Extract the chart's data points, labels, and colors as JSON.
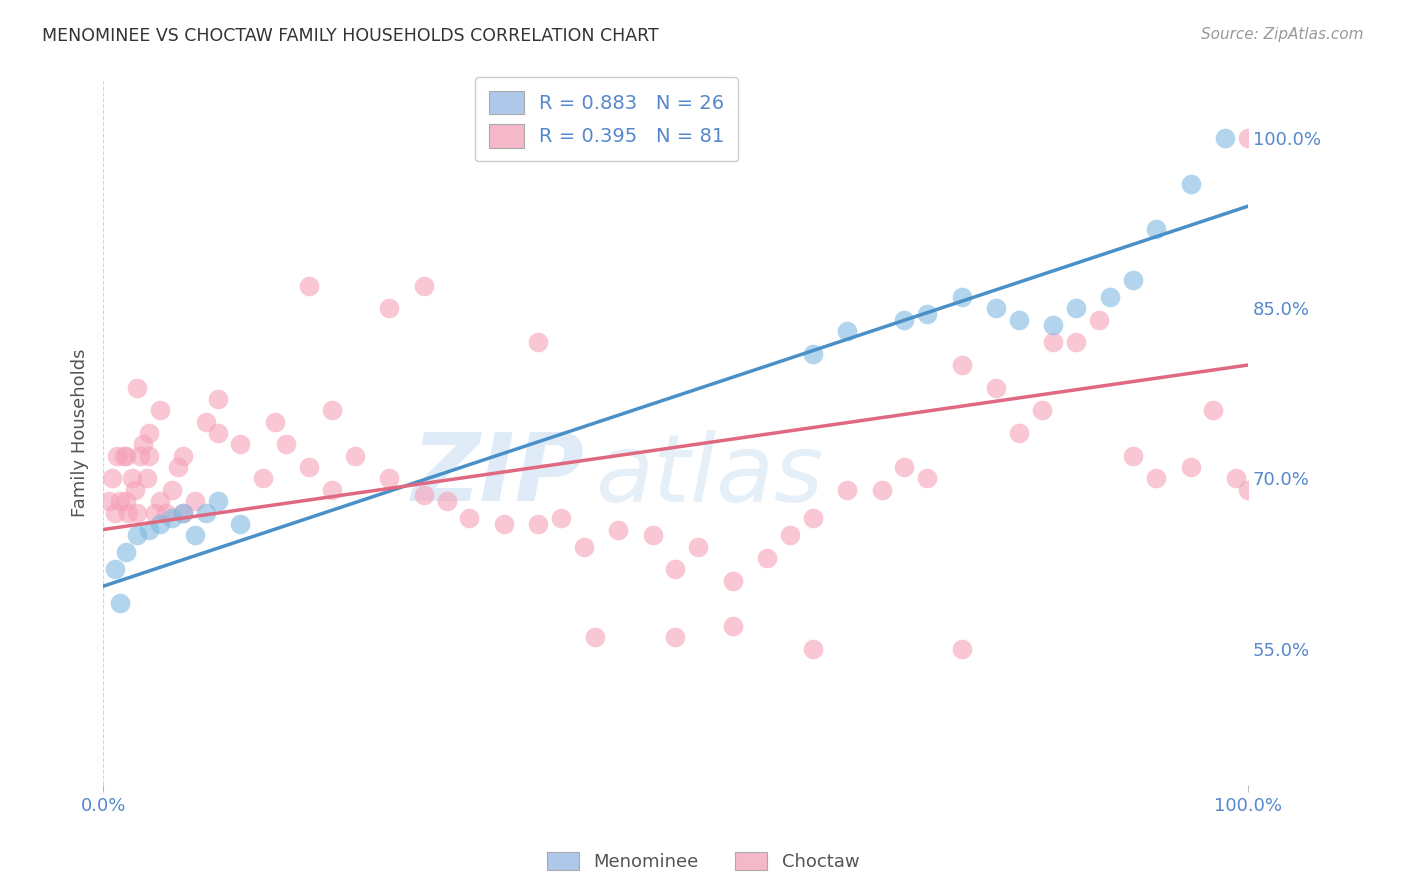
{
  "title": "MENOMINEE VS CHOCTAW FAMILY HOUSEHOLDS CORRELATION CHART",
  "source": "Source: ZipAtlas.com",
  "ylabel": "Family Households",
  "watermark_line1": "ZIP",
  "watermark_line2": "atlas",
  "legend_entries": [
    {
      "label": "R = 0.883   N = 26",
      "color": "#adc8e8"
    },
    {
      "label": "R = 0.395   N = 81",
      "color": "#f5b8c8"
    }
  ],
  "legend_labels": [
    "Menominee",
    "Choctaw"
  ],
  "menominee_color": "#7fb8e0",
  "choctaw_color": "#f5a0b8",
  "menominee_line_color": "#4a90c8",
  "choctaw_line_color": "#e06880",
  "background_color": "#ffffff",
  "grid_color": "#c8c8c8",
  "axis_label_color": "#5588cc",
  "xlim": [
    0,
    100
  ],
  "ylim_min": 43,
  "ylim_max": 105,
  "ytick_vals": [
    55.0,
    70.0,
    85.0,
    100.0
  ],
  "menominee_x": [
    1.0,
    1.5,
    2.0,
    3.0,
    4.0,
    5.0,
    6.0,
    7.0,
    8.0,
    9.0,
    10.0,
    12.0,
    62.0,
    65.0,
    70.0,
    72.0,
    75.0,
    78.0,
    80.0,
    83.0,
    85.0,
    88.0,
    90.0,
    92.0,
    95.0,
    98.0
  ],
  "menominee_y": [
    62.0,
    59.0,
    63.5,
    65.0,
    65.5,
    66.0,
    66.5,
    67.0,
    65.0,
    67.0,
    68.0,
    66.0,
    81.0,
    83.0,
    84.0,
    84.5,
    86.0,
    85.0,
    84.0,
    83.5,
    85.0,
    86.0,
    87.5,
    92.0,
    96.0,
    100.0
  ],
  "choctaw_x": [
    0.5,
    0.8,
    1.0,
    1.2,
    1.5,
    1.8,
    2.0,
    2.2,
    2.5,
    2.8,
    3.0,
    3.2,
    3.5,
    3.8,
    4.0,
    4.5,
    5.0,
    5.5,
    6.0,
    6.5,
    7.0,
    8.0,
    9.0,
    10.0,
    12.0,
    14.0,
    16.0,
    18.0,
    20.0,
    22.0,
    25.0,
    28.0,
    30.0,
    32.0,
    35.0,
    38.0,
    40.0,
    42.0,
    45.0,
    48.0,
    50.0,
    52.0,
    55.0,
    58.0,
    60.0,
    62.0,
    65.0,
    68.0,
    70.0,
    72.0,
    75.0,
    78.0,
    80.0,
    82.0,
    83.0,
    85.0,
    87.0,
    90.0,
    92.0,
    95.0,
    97.0,
    99.0,
    100.0,
    2.0,
    3.0,
    4.0,
    5.0,
    7.0,
    10.0,
    15.0,
    20.0,
    38.0,
    43.0,
    28.0,
    25.0,
    18.0,
    50.0,
    55.0,
    62.0,
    75.0,
    100.0
  ],
  "choctaw_y": [
    68.0,
    70.0,
    67.0,
    72.0,
    68.0,
    72.0,
    68.0,
    67.0,
    70.0,
    69.0,
    67.0,
    72.0,
    73.0,
    70.0,
    72.0,
    67.0,
    68.0,
    67.0,
    69.0,
    71.0,
    67.0,
    68.0,
    75.0,
    74.0,
    73.0,
    70.0,
    73.0,
    71.0,
    69.0,
    72.0,
    70.0,
    68.5,
    68.0,
    66.5,
    66.0,
    66.0,
    66.5,
    64.0,
    65.5,
    65.0,
    62.0,
    64.0,
    61.0,
    63.0,
    65.0,
    66.5,
    69.0,
    69.0,
    71.0,
    70.0,
    80.0,
    78.0,
    74.0,
    76.0,
    82.0,
    82.0,
    84.0,
    72.0,
    70.0,
    71.0,
    76.0,
    70.0,
    100.0,
    72.0,
    78.0,
    74.0,
    76.0,
    72.0,
    77.0,
    75.0,
    76.0,
    82.0,
    56.0,
    87.0,
    85.0,
    87.0,
    56.0,
    57.0,
    55.0,
    55.0,
    69.0
  ],
  "blue_line_x0": 0,
  "blue_line_y0": 60.5,
  "blue_line_x1": 100,
  "blue_line_y1": 94.0,
  "pink_line_x0": 0,
  "pink_line_y0": 65.5,
  "pink_line_x1": 100,
  "pink_line_y1": 80.0
}
